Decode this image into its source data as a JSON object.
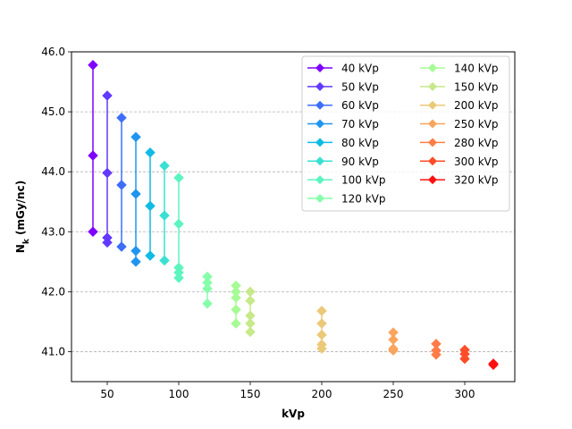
{
  "chart_data": {
    "type": "scatter",
    "title": "",
    "xlabel": "kVp",
    "ylabel_main": "N",
    "ylabel_sub": "k",
    "ylabel_rest": " (mGy/nc)",
    "xlim": [
      25,
      335
    ],
    "ylim": [
      40.5,
      46.0
    ],
    "xticks": [
      50,
      100,
      150,
      200,
      250,
      300
    ],
    "yticks": [
      41.0,
      42.0,
      43.0,
      44.0,
      45.0,
      46.0
    ],
    "ytick_labels": [
      "41.0",
      "42.0",
      "43.0",
      "44.0",
      "45.0",
      "46.0"
    ],
    "grid": "y-dashed",
    "legend_position": "upper-right",
    "legend_columns": 2,
    "series": [
      {
        "name": "40 kVp",
        "color": "#7f00ff",
        "x": 40,
        "values": [
          45.78,
          44.27,
          43.0
        ]
      },
      {
        "name": "50 kVp",
        "color": "#6239ff",
        "x": 50,
        "values": [
          45.27,
          43.98,
          42.9,
          42.82
        ]
      },
      {
        "name": "60 kVp",
        "color": "#3d6efa",
        "x": 60,
        "values": [
          44.9,
          43.78,
          42.75
        ]
      },
      {
        "name": "70 kVp",
        "color": "#1f95f0",
        "x": 70,
        "values": [
          44.58,
          43.63,
          42.68,
          42.5
        ]
      },
      {
        "name": "80 kVp",
        "color": "#10bbe4",
        "x": 80,
        "values": [
          44.32,
          43.43,
          42.6
        ]
      },
      {
        "name": "90 kVp",
        "color": "#3ae0d2",
        "x": 90,
        "values": [
          44.1,
          43.27,
          42.52
        ]
      },
      {
        "name": "100 kVp",
        "color": "#5cf5c0",
        "x": 100,
        "values": [
          43.9,
          43.13,
          42.4,
          42.32,
          42.23
        ]
      },
      {
        "name": "120 kVp",
        "color": "#85ffaa",
        "x": 120,
        "values": [
          42.25,
          42.15,
          42.05,
          41.8
        ]
      },
      {
        "name": "140 kVp",
        "color": "#a6fb96",
        "x": 140,
        "values": [
          42.1,
          42.0,
          41.9,
          41.7,
          41.47
        ]
      },
      {
        "name": "150 kVp",
        "color": "#c7e98a",
        "x": 150,
        "values": [
          42.0,
          41.85,
          41.6,
          41.47,
          41.33
        ]
      },
      {
        "name": "200 kVp",
        "color": "#ebc978",
        "x": 200,
        "values": [
          41.68,
          41.47,
          41.28,
          41.12,
          41.05
        ]
      },
      {
        "name": "250 kVp",
        "color": "#f9a55d",
        "x": 250,
        "values": [
          41.32,
          41.2,
          41.05,
          41.02
        ]
      },
      {
        "name": "280 kVp",
        "color": "#ff7c46",
        "x": 280,
        "values": [
          41.13,
          41.02,
          40.95
        ]
      },
      {
        "name": "300 kVp",
        "color": "#ff4d29",
        "x": 300,
        "values": [
          41.03,
          40.96,
          40.88
        ]
      },
      {
        "name": "320 kVp",
        "color": "#ff1010",
        "x": 320,
        "values": [
          40.8,
          40.78
        ]
      }
    ]
  }
}
